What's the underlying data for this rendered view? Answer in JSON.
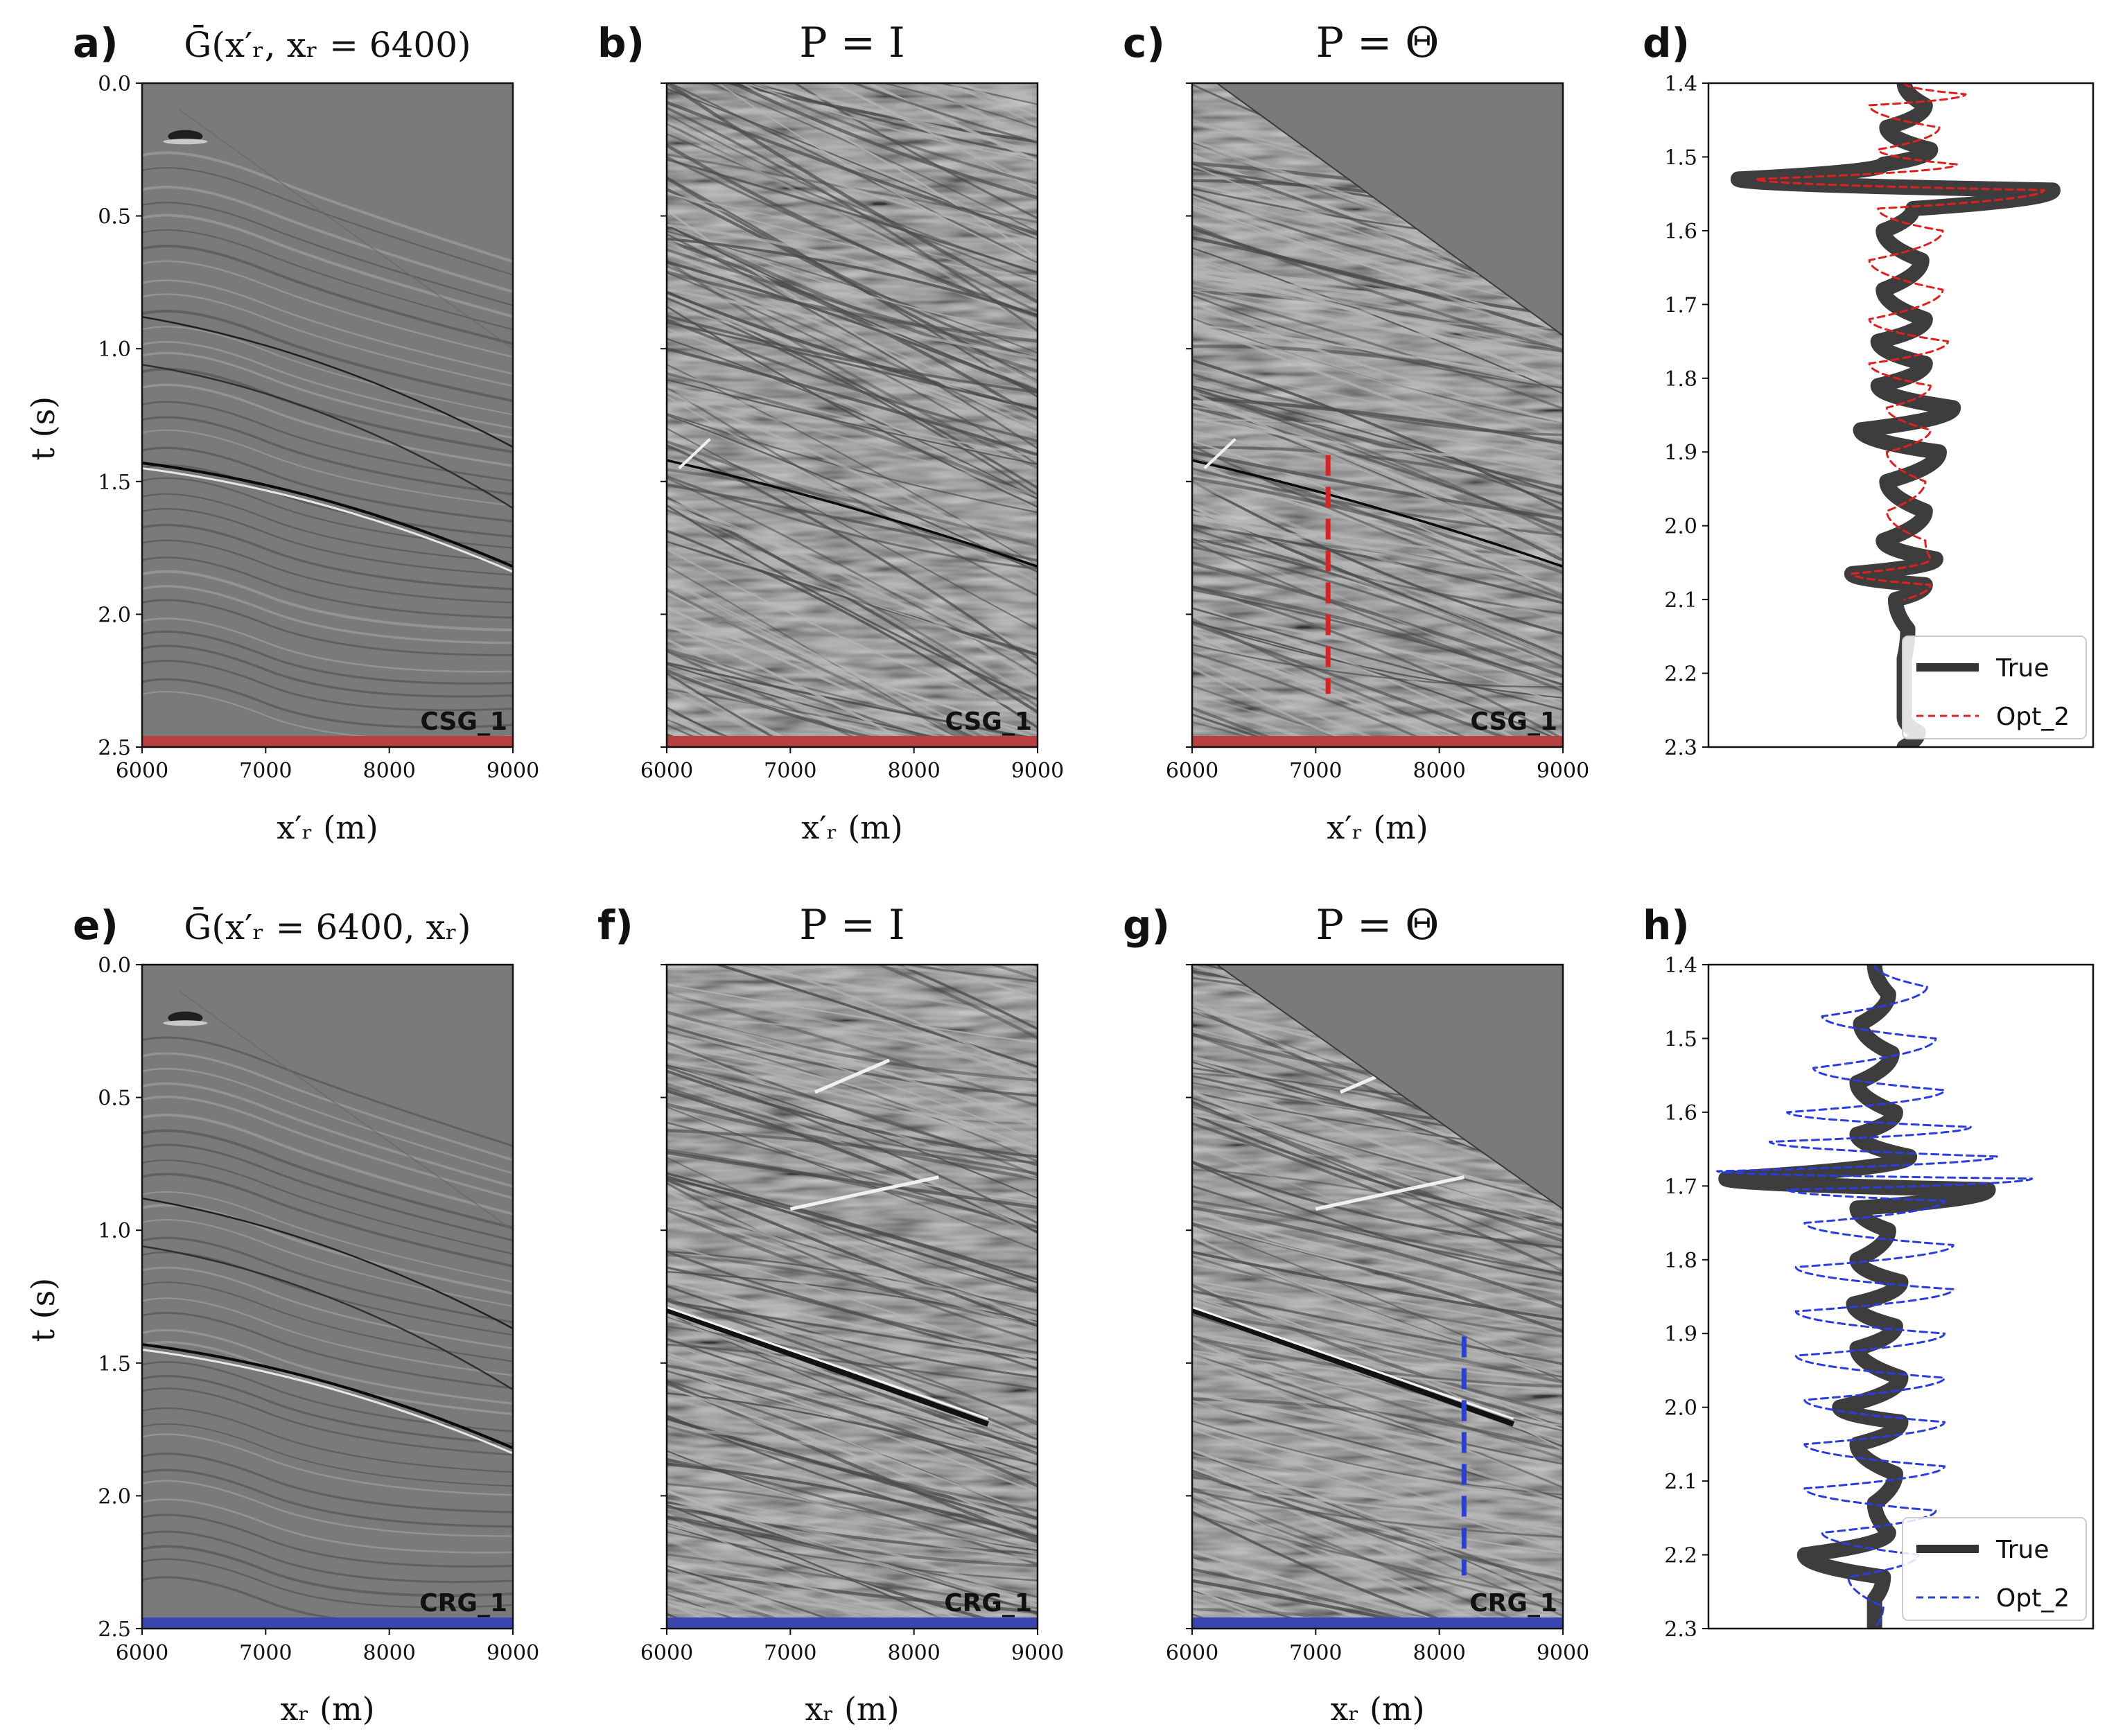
{
  "figure": {
    "shot_panels": [
      {
        "id": "a",
        "letter": "a)",
        "title": "Ḡ(x′ᵣ, xᵣ = 6400)",
        "xlabel": "x′ᵣ (m)",
        "ylabel": "t (s)",
        "badge": "CSG_1",
        "badge_color": "#b84040",
        "show_ytick_labels": true,
        "kind": "data",
        "marker": null
      },
      {
        "id": "b",
        "letter": "b)",
        "title": "P = I",
        "xlabel": "x′ᵣ (m)",
        "ylabel": "",
        "badge": "CSG_1",
        "badge_color": "#b84040",
        "show_ytick_labels": false,
        "kind": "noisy",
        "marker": null
      },
      {
        "id": "c",
        "letter": "c)",
        "title": "P = Θ",
        "xlabel": "x′ᵣ (m)",
        "ylabel": "",
        "badge": "CSG_1",
        "badge_color": "#b84040",
        "show_ytick_labels": false,
        "kind": "theta",
        "marker": {
          "x": 7100,
          "t_start": 1.4,
          "t_end": 2.3,
          "color": "#e02020"
        }
      }
    ],
    "receiver_panels": [
      {
        "id": "e",
        "letter": "e)",
        "title": "Ḡ(x′ᵣ = 6400, xᵣ)",
        "xlabel": "xᵣ (m)",
        "ylabel": "t (s)",
        "badge": "CRG_1",
        "badge_color": "#3b45b0",
        "show_ytick_labels": true,
        "kind": "data",
        "marker": null
      },
      {
        "id": "f",
        "letter": "f)",
        "title": "P = I",
        "xlabel": "xᵣ (m)",
        "ylabel": "",
        "badge": "CRG_1",
        "badge_color": "#3b45b0",
        "show_ytick_labels": false,
        "kind": "noisy",
        "marker": null
      },
      {
        "id": "g",
        "letter": "g)",
        "title": "P = Θ",
        "xlabel": "xᵣ (m)",
        "ylabel": "",
        "badge": "CRG_1",
        "badge_color": "#3b45b0",
        "show_ytick_labels": false,
        "kind": "theta",
        "marker": {
          "x": 8200,
          "t_start": 1.4,
          "t_end": 2.3,
          "color": "#2a3ee0"
        }
      }
    ]
  },
  "chart_data": [
    {
      "type": "heatmap",
      "panel": "a",
      "title": "Ḡ(x′ᵣ, xᵣ = 6400)",
      "xlabel": "x′ᵣ (m)",
      "ylabel": "t (s)",
      "xlim": [
        6000,
        9000
      ],
      "ylim": [
        0.0,
        2.5
      ],
      "xticks": [
        6000,
        7000,
        8000,
        9000
      ],
      "yticks": [
        0.0,
        0.5,
        1.0,
        1.5,
        2.0,
        2.5
      ],
      "colormap": "gray",
      "annotation": "CSG_1"
    },
    {
      "type": "heatmap",
      "panel": "b",
      "title": "P = I",
      "xlabel": "x′ᵣ (m)",
      "xlim": [
        6000,
        9000
      ],
      "ylim": [
        0.0,
        2.5
      ],
      "xticks": [
        6000,
        7000,
        8000,
        9000
      ],
      "colormap": "gray",
      "annotation": "CSG_1"
    },
    {
      "type": "heatmap",
      "panel": "c",
      "title": "P = Θ",
      "xlabel": "x′ᵣ (m)",
      "xlim": [
        6000,
        9000
      ],
      "ylim": [
        0.0,
        2.5
      ],
      "xticks": [
        6000,
        7000,
        8000,
        9000
      ],
      "colormap": "gray",
      "annotation": "CSG_1",
      "trace_marker_x": 7100,
      "trace_marker_t": [
        1.4,
        2.3
      ]
    },
    {
      "type": "line",
      "panel": "d",
      "ylim": [
        1.4,
        2.3
      ],
      "yticks": [
        1.4,
        1.5,
        1.6,
        1.7,
        1.8,
        1.9,
        2.0,
        2.1,
        2.2,
        2.3
      ],
      "xlim": [
        -1.1,
        1.1
      ],
      "legend": "lower-right",
      "center": 0.02,
      "series": [
        {
          "name": "True",
          "color": "#333333",
          "style": "solid",
          "t": [
            1.4,
            1.43,
            1.46,
            1.49,
            1.51,
            1.53,
            1.545,
            1.57,
            1.6,
            1.64,
            1.68,
            1.72,
            1.75,
            1.78,
            1.81,
            1.84,
            1.87,
            1.9,
            1.94,
            1.98,
            2.02,
            2.045,
            2.065,
            2.08,
            2.1,
            2.14,
            2.18,
            2.22,
            2.26,
            2.28,
            2.3
          ],
          "a": [
            0.0,
            0.12,
            -0.1,
            0.15,
            -0.12,
            -0.95,
            0.85,
            0.05,
            -0.12,
            0.1,
            -0.12,
            0.12,
            -0.15,
            0.12,
            -0.15,
            0.28,
            -0.25,
            0.2,
            -0.1,
            0.12,
            -0.12,
            0.18,
            -0.3,
            0.12,
            -0.05,
            0.02,
            0.0,
            0.0,
            0.0,
            0.08,
            0.0
          ]
        },
        {
          "name": "Opt_2",
          "color": "#e02020",
          "style": "dashed",
          "t": [
            1.4,
            1.415,
            1.43,
            1.46,
            1.49,
            1.51,
            1.53,
            1.545,
            1.57,
            1.6,
            1.64,
            1.68,
            1.72,
            1.75,
            1.78,
            1.81,
            1.84,
            1.87,
            1.9,
            1.94,
            1.98,
            2.02,
            2.045,
            2.065,
            2.08,
            2.1
          ],
          "a": [
            0.0,
            0.35,
            -0.2,
            0.2,
            -0.15,
            0.3,
            -0.85,
            0.8,
            -0.15,
            0.22,
            -0.2,
            0.22,
            -0.2,
            0.25,
            -0.2,
            0.15,
            -0.1,
            0.15,
            -0.1,
            0.12,
            -0.1,
            0.12,
            0.15,
            -0.3,
            0.15,
            0.0
          ]
        }
      ]
    },
    {
      "type": "heatmap",
      "panel": "e",
      "title": "Ḡ(x′ᵣ = 6400, xᵣ)",
      "xlabel": "xᵣ (m)",
      "ylabel": "t (s)",
      "xlim": [
        6000,
        9000
      ],
      "ylim": [
        0.0,
        2.5
      ],
      "xticks": [
        6000,
        7000,
        8000,
        9000
      ],
      "yticks": [
        0.0,
        0.5,
        1.0,
        1.5,
        2.0,
        2.5
      ],
      "colormap": "gray",
      "annotation": "CRG_1"
    },
    {
      "type": "heatmap",
      "panel": "f",
      "title": "P = I",
      "xlabel": "xᵣ (m)",
      "xlim": [
        6000,
        9000
      ],
      "ylim": [
        0.0,
        2.5
      ],
      "xticks": [
        6000,
        7000,
        8000,
        9000
      ],
      "colormap": "gray",
      "annotation": "CRG_1"
    },
    {
      "type": "heatmap",
      "panel": "g",
      "title": "P = Θ",
      "xlabel": "xᵣ (m)",
      "xlim": [
        6000,
        9000
      ],
      "ylim": [
        0.0,
        2.5
      ],
      "xticks": [
        6000,
        7000,
        8000,
        9000
      ],
      "colormap": "gray",
      "annotation": "CRG_1",
      "trace_marker_x": 8200,
      "trace_marker_t": [
        1.4,
        2.3
      ]
    },
    {
      "type": "line",
      "panel": "h",
      "ylim": [
        1.4,
        2.3
      ],
      "yticks": [
        1.4,
        1.5,
        1.6,
        1.7,
        1.8,
        1.9,
        2.0,
        2.1,
        2.2,
        2.3
      ],
      "xlim": [
        -1.1,
        1.1
      ],
      "legend": "lower-right",
      "center": -0.15,
      "series": [
        {
          "name": "True",
          "color": "#333333",
          "style": "solid",
          "t": [
            1.4,
            1.44,
            1.48,
            1.52,
            1.56,
            1.6,
            1.63,
            1.66,
            1.69,
            1.705,
            1.73,
            1.76,
            1.8,
            1.83,
            1.86,
            1.89,
            1.92,
            1.96,
            2.0,
            2.02,
            2.05,
            2.09,
            2.13,
            2.17,
            2.2,
            2.23,
            2.26,
            2.3
          ],
          "a": [
            0.0,
            0.08,
            -0.08,
            0.1,
            -0.1,
            0.12,
            -0.1,
            0.2,
            -0.85,
            0.65,
            -0.1,
            0.08,
            -0.1,
            0.15,
            -0.12,
            0.12,
            -0.1,
            0.15,
            -0.2,
            0.15,
            -0.1,
            0.12,
            0.0,
            0.08,
            -0.4,
            0.05,
            0.0,
            0.0
          ]
        },
        {
          "name": "Opt_2",
          "color": "#2a3ee0",
          "style": "dashed",
          "t": [
            1.4,
            1.43,
            1.47,
            1.5,
            1.54,
            1.57,
            1.6,
            1.62,
            1.64,
            1.66,
            1.68,
            1.69,
            1.705,
            1.72,
            1.75,
            1.78,
            1.81,
            1.84,
            1.87,
            1.9,
            1.93,
            1.96,
            1.99,
            2.02,
            2.05,
            2.08,
            2.11,
            2.14,
            2.17,
            2.2,
            2.23,
            2.27,
            2.3
          ],
          "a": [
            0.0,
            0.3,
            -0.3,
            0.35,
            -0.35,
            0.4,
            -0.5,
            0.55,
            -0.6,
            0.7,
            -0.9,
            0.9,
            -0.5,
            0.4,
            -0.4,
            0.45,
            -0.45,
            0.45,
            -0.45,
            0.4,
            -0.45,
            0.4,
            -0.4,
            0.4,
            -0.4,
            0.4,
            -0.4,
            0.35,
            -0.3,
            0.25,
            -0.15,
            0.05,
            0.0
          ]
        }
      ]
    }
  ]
}
